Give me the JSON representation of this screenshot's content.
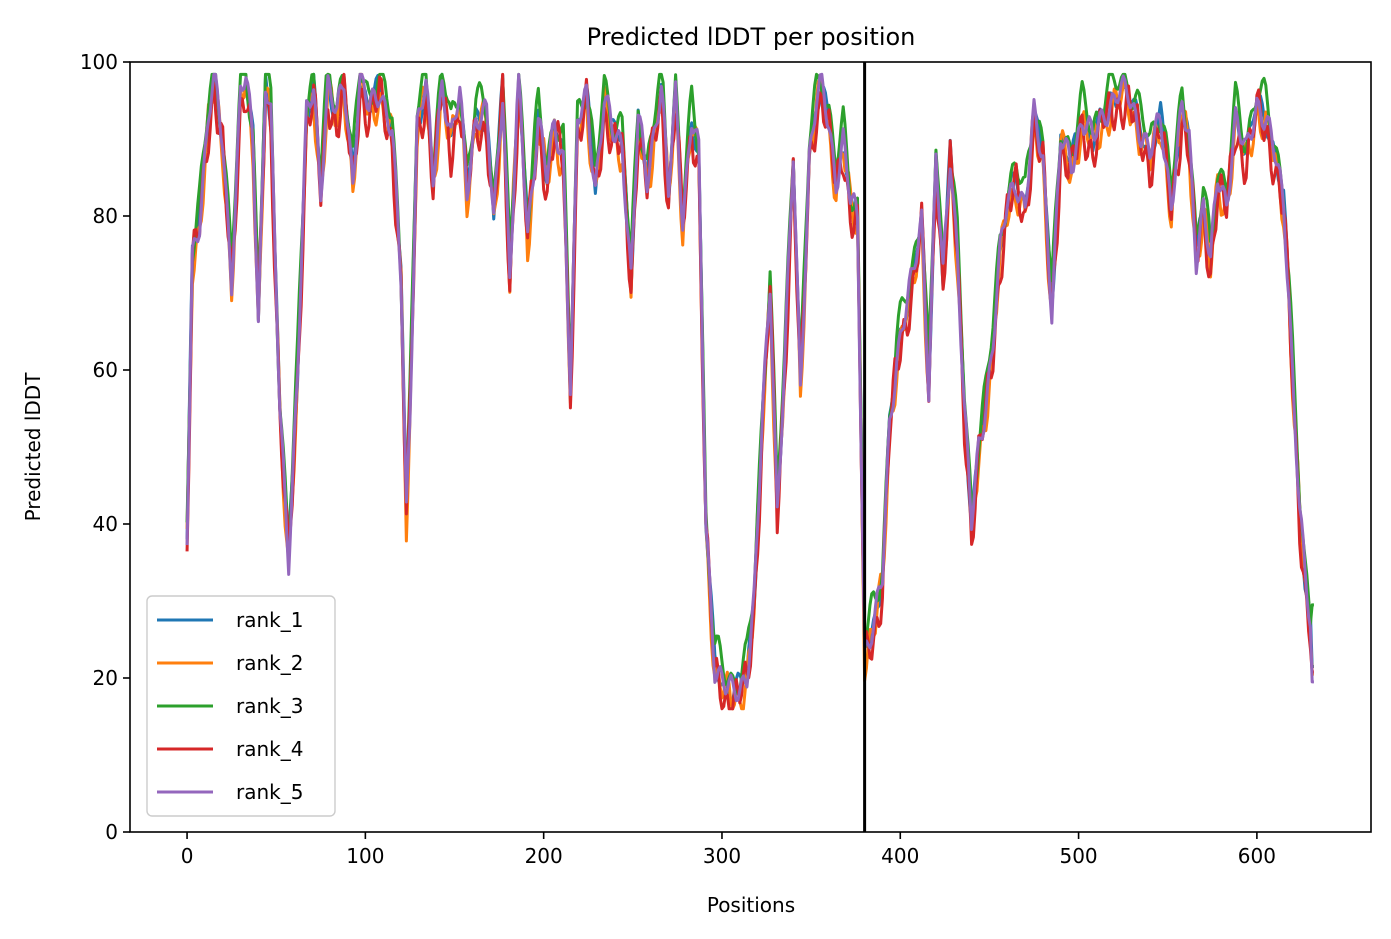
{
  "chart_data": {
    "type": "line",
    "title": "Predicted lDDT per position",
    "xlabel": "Positions",
    "ylabel": "Predicted lDDT",
    "xlim": [
      -32,
      664
    ],
    "ylim": [
      0,
      100
    ],
    "xticks": [
      0,
      100,
      200,
      300,
      400,
      500,
      600
    ],
    "yticks": [
      0,
      20,
      40,
      60,
      80,
      100
    ],
    "grid": false,
    "legend_position": "lower-left",
    "chain_boundary_x": 380,
    "base_curve": {
      "x": [
        0,
        3,
        7,
        12,
        15,
        20,
        25,
        30,
        33,
        37,
        40,
        44,
        47,
        52,
        57,
        62,
        67,
        71,
        75,
        79,
        84,
        88,
        93,
        97,
        102,
        108,
        115,
        120,
        123,
        125,
        129,
        134,
        138,
        143,
        148,
        153,
        157,
        162,
        168,
        172,
        177,
        181,
        186,
        191,
        197,
        202,
        206,
        211,
        215,
        219,
        224,
        229,
        234,
        239,
        244,
        249,
        253,
        258,
        263,
        266,
        270,
        274,
        278,
        283,
        287,
        291,
        296,
        302,
        306,
        310,
        314,
        318,
        323,
        327,
        331,
        335,
        340,
        344,
        349,
        353,
        356,
        360,
        364,
        368,
        372,
        376,
        380,
        382,
        386,
        390,
        394,
        398,
        403,
        407,
        412,
        416,
        420,
        424,
        428,
        432,
        436,
        440,
        444,
        448,
        452,
        456,
        460,
        465,
        470,
        475,
        480,
        485,
        490,
        496,
        502,
        508,
        515,
        522,
        528,
        534,
        540,
        546,
        552,
        558,
        562,
        566,
        570,
        574,
        578,
        583,
        588,
        594,
        600,
        605,
        610,
        615,
        618,
        621,
        624,
        627,
        630,
        632
      ],
      "y": [
        38,
        75,
        80,
        93,
        98,
        90,
        72,
        96,
        98,
        90,
        67,
        98,
        93,
        55,
        36,
        60,
        93,
        97,
        84,
        97,
        93,
        98,
        85,
        98,
        94,
        97,
        91,
        72,
        42,
        55,
        92,
        97,
        85,
        98,
        90,
        96,
        84,
        93,
        93,
        80,
        97,
        72,
        98,
        78,
        93,
        85,
        92,
        88,
        58,
        92,
        96,
        84,
        95,
        91,
        90,
        72,
        93,
        85,
        93,
        97,
        83,
        96,
        80,
        93,
        88,
        40,
        22,
        19,
        18,
        19,
        21,
        30,
        55,
        72,
        42,
        60,
        88,
        58,
        88,
        95,
        97,
        92,
        85,
        90,
        82,
        80,
        24,
        25,
        28,
        33,
        53,
        62,
        68,
        72,
        80,
        58,
        88,
        72,
        88,
        76,
        55,
        40,
        50,
        56,
        64,
        75,
        82,
        85,
        81,
        93,
        88,
        68,
        90,
        87,
        93,
        90,
        94,
        96,
        96,
        92,
        88,
        93,
        82,
        94,
        90,
        75,
        82,
        74,
        85,
        82,
        93,
        88,
        95,
        93,
        88,
        82,
        70,
        55,
        42,
        33,
        27,
        22
      ]
    },
    "series": [
      {
        "name": "rank_1",
        "color": "#1f77b4",
        "offset": 0.0,
        "wobble": 1.2,
        "phase": 0.0,
        "freq": 0.9,
        "tail": 21.5
      },
      {
        "name": "rank_2",
        "color": "#ff7f0e",
        "offset": -1.2,
        "wobble": 2.0,
        "phase": 1.3,
        "freq": 1.1,
        "tail": 20.5
      },
      {
        "name": "rank_3",
        "color": "#2ca02c",
        "offset": 1.6,
        "wobble": 1.8,
        "phase": 2.1,
        "freq": 0.8,
        "tail": 29.5
      },
      {
        "name": "rank_4",
        "color": "#d62728",
        "offset": -1.5,
        "wobble": 2.2,
        "phase": 3.0,
        "freq": 1.2,
        "tail": 20.8
      },
      {
        "name": "rank_5",
        "color": "#9467bd",
        "offset": -0.2,
        "wobble": 1.5,
        "phase": 4.2,
        "freq": 1.0,
        "tail": 19.5
      }
    ]
  }
}
